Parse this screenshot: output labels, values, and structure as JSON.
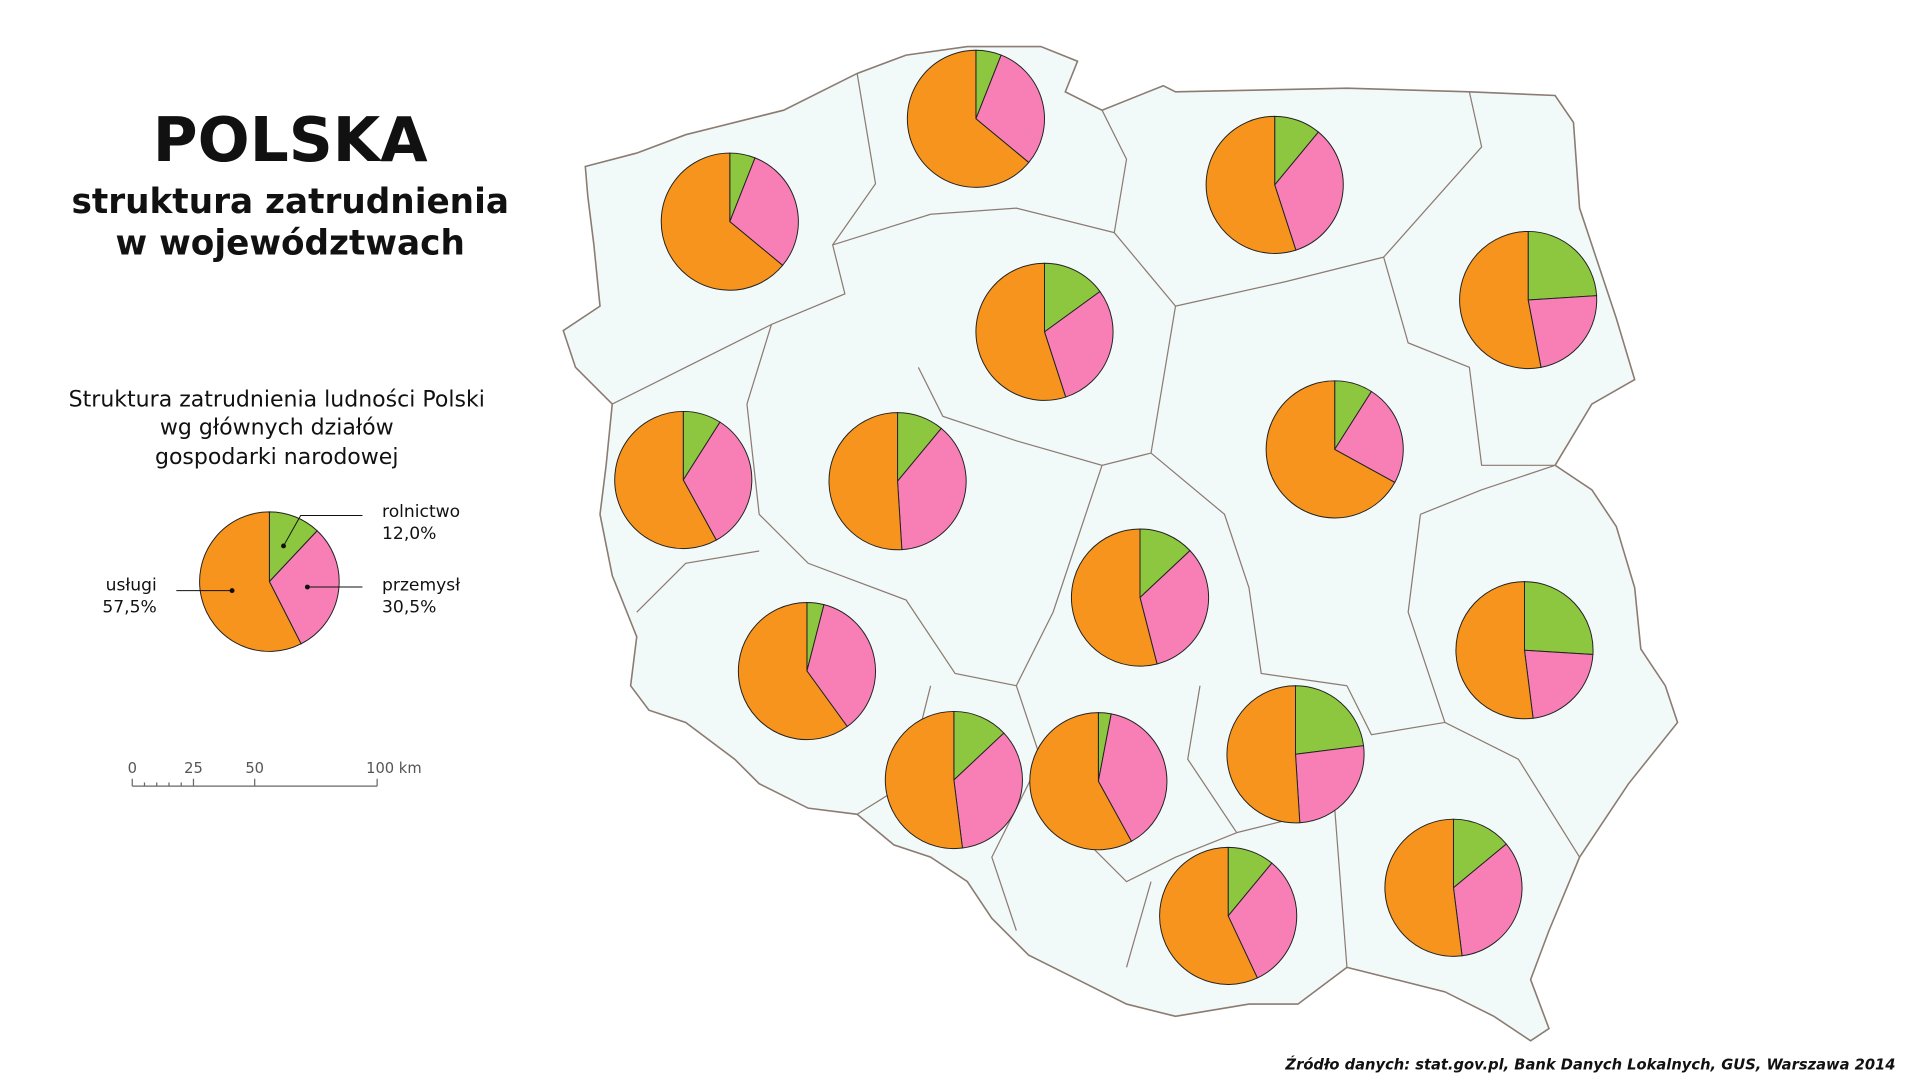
{
  "header": {
    "title": "POLSKA",
    "subtitle_lines": [
      "struktura zatrudnienia",
      "w województwach"
    ]
  },
  "legend": {
    "title_lines": [
      "Struktura zatrudnienia ludności Polski",
      "wg głównych działów",
      "gospodarki narodowej"
    ],
    "items": [
      {
        "name": "rolnictwo",
        "value": 12.0,
        "value_label": "12,0%",
        "color": "#8dc63f"
      },
      {
        "name": "przemysł",
        "value": 30.5,
        "value_label": "30,5%",
        "color": "#f77fb5"
      },
      {
        "name": "usługi",
        "value": 57.5,
        "value_label": "57,5%",
        "color": "#f7941d"
      }
    ]
  },
  "scale": {
    "ticks": [
      0,
      25,
      50,
      {
        "value": 100,
        "label": "100 km"
      }
    ]
  },
  "pies": [
    {
      "values": [
        6,
        30,
        64
      ]
    },
    {
      "values": [
        6,
        30,
        64
      ]
    },
    {
      "values": [
        11,
        34,
        55
      ]
    },
    {
      "values": [
        24,
        23,
        53
      ]
    },
    {
      "values": [
        15,
        30,
        55
      ]
    },
    {
      "values": [
        9,
        33,
        58
      ]
    },
    {
      "values": [
        11,
        38,
        51
      ]
    },
    {
      "values": [
        9,
        24,
        67
      ]
    },
    {
      "values": [
        13,
        33,
        54
      ]
    },
    {
      "values": [
        26,
        22,
        52
      ]
    },
    {
      "values": [
        4,
        36,
        60
      ]
    },
    {
      "values": [
        13,
        35,
        52
      ]
    },
    {
      "values": [
        3,
        39,
        58
      ]
    },
    {
      "values": [
        23,
        26,
        51
      ]
    },
    {
      "values": [
        11,
        32,
        57
      ]
    },
    {
      "values": [
        14,
        34,
        52
      ]
    }
  ],
  "source": "Źródło danych: stat.gov.pl, Bank Danych Lokalnych, GUS, Warszawa 2014"
}
